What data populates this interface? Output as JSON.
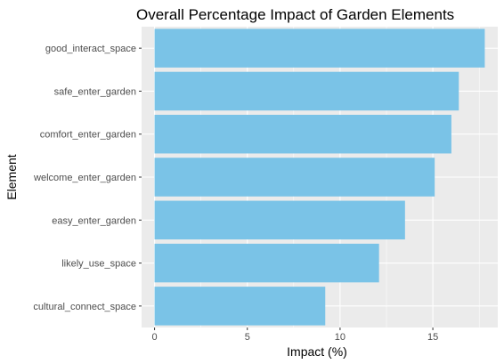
{
  "chart_data": {
    "type": "bar",
    "orientation": "horizontal",
    "title": "Overall Percentage Impact of Garden Elements",
    "xlabel": "Impact (%)",
    "ylabel": "Element",
    "categories": [
      "good_interact_space",
      "safe_enter_garden",
      "comfort_enter_garden",
      "welcome_enter_garden",
      "easy_enter_garden",
      "likely_use_space",
      "cultural_connect_space"
    ],
    "values": [
      17.8,
      16.4,
      16.0,
      15.1,
      13.5,
      12.1,
      9.2
    ],
    "xlim": [
      -0.7,
      18.5
    ],
    "xticks": [
      0,
      5,
      10,
      15
    ],
    "grid": true,
    "legend": "none",
    "colors": {
      "bar": "#7AC3E7",
      "panel": "#EBEBEB",
      "grid": "#FFFFFF"
    }
  }
}
